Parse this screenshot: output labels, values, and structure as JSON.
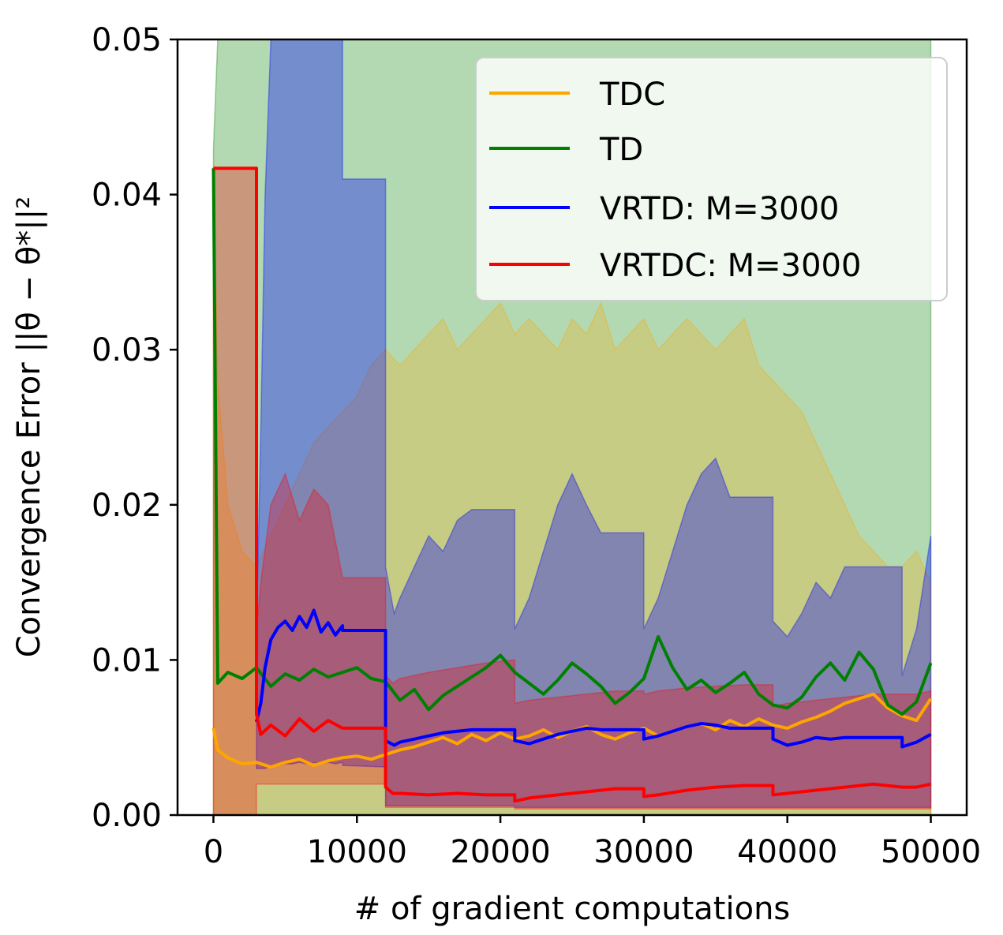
{
  "chart_data": {
    "type": "line",
    "title": "",
    "xlabel": "# of gradient computations",
    "ylabel": "Convergence Error ||θ − θ*||²",
    "xlim": [
      -2500,
      52500
    ],
    "ylim": [
      0,
      0.05
    ],
    "xticks": [
      0,
      10000,
      20000,
      30000,
      40000,
      50000
    ],
    "xtick_labels": [
      "0",
      "10000",
      "20000",
      "30000",
      "40000",
      "50000"
    ],
    "yticks": [
      0,
      0.01,
      0.02,
      0.03,
      0.04,
      0.05
    ],
    "ytick_labels": [
      "0.00",
      "0.01",
      "0.02",
      "0.03",
      "0.04",
      "0.05"
    ],
    "grid": false,
    "legend_position": "top-right",
    "series": [
      {
        "name": "TDC",
        "color": "#ffa500",
        "x": [
          0,
          300,
          1000,
          2000,
          3000,
          4000,
          5000,
          6000,
          7000,
          8000,
          9000,
          10000,
          11000,
          12000,
          13000,
          14000,
          15000,
          16000,
          17000,
          18000,
          19000,
          20000,
          21000,
          22000,
          23000,
          24000,
          25000,
          26000,
          27000,
          28000,
          29000,
          30000,
          31000,
          32000,
          33000,
          34000,
          35000,
          36000,
          37000,
          38000,
          39000,
          40000,
          41000,
          42000,
          43000,
          44000,
          45000,
          46000,
          47000,
          48000,
          49000,
          50000
        ],
        "values": [
          0.0056,
          0.0042,
          0.0037,
          0.0033,
          0.0034,
          0.0031,
          0.0034,
          0.0036,
          0.0032,
          0.0035,
          0.0037,
          0.0038,
          0.0036,
          0.0039,
          0.0042,
          0.0044,
          0.0047,
          0.005,
          0.0046,
          0.0052,
          0.0048,
          0.0053,
          0.0049,
          0.0051,
          0.0055,
          0.005,
          0.0054,
          0.0057,
          0.0052,
          0.0049,
          0.0053,
          0.0056,
          0.0051,
          0.0054,
          0.0057,
          0.0059,
          0.0055,
          0.0061,
          0.0057,
          0.0062,
          0.0058,
          0.0056,
          0.006,
          0.0063,
          0.0067,
          0.0072,
          0.0075,
          0.0078,
          0.0069,
          0.0064,
          0.0061,
          0.0075
        ],
        "band_low": 0.0,
        "band_high": [
          0.042,
          0.028,
          0.02,
          0.017,
          0.016,
          0.018,
          0.02,
          0.022,
          0.024,
          0.025,
          0.026,
          0.027,
          0.029,
          0.03,
          0.029,
          0.03,
          0.031,
          0.032,
          0.03,
          0.031,
          0.032,
          0.033,
          0.031,
          0.032,
          0.031,
          0.03,
          0.032,
          0.031,
          0.033,
          0.03,
          0.031,
          0.032,
          0.03,
          0.031,
          0.032,
          0.031,
          0.03,
          0.031,
          0.032,
          0.029,
          0.028,
          0.027,
          0.026,
          0.024,
          0.022,
          0.02,
          0.018,
          0.017,
          0.016,
          0.016,
          0.017,
          0.015
        ]
      },
      {
        "name": "TD",
        "color": "#008000",
        "x": [
          0,
          300,
          1000,
          2000,
          3000,
          4000,
          5000,
          6000,
          7000,
          8000,
          9000,
          10000,
          11000,
          12000,
          13000,
          14000,
          15000,
          16000,
          17000,
          18000,
          19000,
          20000,
          21000,
          22000,
          23000,
          24000,
          25000,
          26000,
          27000,
          28000,
          29000,
          30000,
          31000,
          32000,
          33000,
          34000,
          35000,
          36000,
          37000,
          38000,
          39000,
          40000,
          41000,
          42000,
          43000,
          44000,
          45000,
          46000,
          47000,
          48000,
          49000,
          50000
        ],
        "values": [
          0.0417,
          0.0085,
          0.0092,
          0.0088,
          0.0095,
          0.0083,
          0.0091,
          0.0087,
          0.0094,
          0.0089,
          0.0092,
          0.0095,
          0.0088,
          0.0086,
          0.0074,
          0.0081,
          0.0068,
          0.0077,
          0.0083,
          0.0089,
          0.0095,
          0.0103,
          0.0092,
          0.0085,
          0.0078,
          0.0087,
          0.0098,
          0.0091,
          0.0083,
          0.0072,
          0.0079,
          0.0088,
          0.0115,
          0.0095,
          0.0081,
          0.0087,
          0.0079,
          0.0085,
          0.0092,
          0.0078,
          0.0071,
          0.0069,
          0.0076,
          0.0089,
          0.0098,
          0.0087,
          0.0105,
          0.0094,
          0.0071,
          0.0065,
          0.0073,
          0.0098
        ],
        "band_low": 0.0,
        "band_high": [
          0.043,
          0.05,
          0.05,
          0.05,
          0.05,
          0.05,
          0.05,
          0.05,
          0.05,
          0.05,
          0.05,
          0.05,
          0.05,
          0.05,
          0.05,
          0.05,
          0.05,
          0.05,
          0.05,
          0.05,
          0.05,
          0.05,
          0.05,
          0.05,
          0.05,
          0.05,
          0.05,
          0.05,
          0.05,
          0.05,
          0.05,
          0.05,
          0.05,
          0.05,
          0.05,
          0.05,
          0.05,
          0.05,
          0.05,
          0.05,
          0.05,
          0.05,
          0.05,
          0.05,
          0.05,
          0.05,
          0.05,
          0.05,
          0.05,
          0.05,
          0.05,
          0.05
        ]
      },
      {
        "name": "VRTD: M=3000",
        "color": "#0000ff",
        "x": [
          3000,
          3300,
          3600,
          4000,
          4500,
          5000,
          5500,
          6000,
          6500,
          7000,
          7500,
          8000,
          8500,
          9000,
          9000,
          12000,
          12000,
          12600,
          13000,
          14000,
          15000,
          16000,
          17000,
          18000,
          21000,
          21000,
          22000,
          23000,
          24000,
          25000,
          26000,
          27000,
          30000,
          30000,
          31000,
          32000,
          33000,
          34000,
          35000,
          36000,
          39000,
          39000,
          40000,
          41000,
          42000,
          43000,
          44000,
          45000,
          48000,
          48000,
          49000,
          50000
        ],
        "values": [
          0.006,
          0.0072,
          0.0095,
          0.0113,
          0.0121,
          0.0125,
          0.0119,
          0.0128,
          0.0121,
          0.0132,
          0.0118,
          0.0124,
          0.0116,
          0.0122,
          0.0119,
          0.0119,
          0.0048,
          0.0045,
          0.0047,
          0.0049,
          0.0051,
          0.0053,
          0.0054,
          0.0055,
          0.0055,
          0.0048,
          0.0046,
          0.0049,
          0.0052,
          0.0054,
          0.0056,
          0.0055,
          0.0055,
          0.0049,
          0.0051,
          0.0054,
          0.0057,
          0.0059,
          0.0058,
          0.0056,
          0.0056,
          0.0049,
          0.0045,
          0.0047,
          0.005,
          0.0049,
          0.005,
          0.005,
          0.005,
          0.0044,
          0.0047,
          0.0052
        ],
        "band_low": [
          0.003,
          0.003,
          0.003,
          0.0032,
          0.0032,
          0.0033,
          0.0033,
          0.0034,
          0.0033,
          0.0034,
          0.0033,
          0.0034,
          0.0033,
          0.0034,
          0.0032,
          0.0031,
          0.0006,
          0.0006,
          0.0006,
          0.0006,
          0.0006,
          0.0006,
          0.0006,
          0.0006,
          0.0006,
          0.0005,
          0.0005,
          0.0005,
          0.0005,
          0.0005,
          0.0005,
          0.0005,
          0.0005,
          0.0005,
          0.0005,
          0.0005,
          0.0005,
          0.0005,
          0.0005,
          0.0005,
          0.0005,
          0.0005,
          0.0005,
          0.0005,
          0.0005,
          0.0005,
          0.0005,
          0.0005,
          0.0005,
          0.0005,
          0.0005,
          0.0005
        ],
        "band_high": [
          0.012,
          0.025,
          0.04,
          0.05,
          0.05,
          0.05,
          0.05,
          0.05,
          0.05,
          0.05,
          0.05,
          0.05,
          0.05,
          0.05,
          0.041,
          0.041,
          0.016,
          0.013,
          0.014,
          0.016,
          0.018,
          0.017,
          0.019,
          0.0197,
          0.0197,
          0.012,
          0.014,
          0.017,
          0.02,
          0.022,
          0.02,
          0.0182,
          0.0182,
          0.012,
          0.014,
          0.017,
          0.02,
          0.022,
          0.023,
          0.0205,
          0.0205,
          0.0125,
          0.0115,
          0.013,
          0.015,
          0.014,
          0.016,
          0.016,
          0.016,
          0.009,
          0.012,
          0.018
        ]
      },
      {
        "name": "VRTDC: M=3000",
        "color": "#ff0000",
        "x": [
          0,
          3000,
          3000,
          3300,
          4000,
          5000,
          6000,
          7000,
          8000,
          9000,
          9000,
          12000,
          12000,
          12500,
          13000,
          15000,
          17000,
          19000,
          21000,
          21000,
          22000,
          24000,
          26000,
          28000,
          30000,
          30000,
          31000,
          33000,
          35000,
          37000,
          39000,
          39000,
          40000,
          42000,
          44000,
          46000,
          48000,
          49000,
          50000
        ],
        "values": [
          0.0417,
          0.0417,
          0.0065,
          0.0052,
          0.0058,
          0.0051,
          0.0062,
          0.0054,
          0.0061,
          0.0056,
          0.0056,
          0.0056,
          0.0018,
          0.0014,
          0.0014,
          0.0013,
          0.0014,
          0.0013,
          0.0013,
          0.0009,
          0.0011,
          0.0013,
          0.0015,
          0.0017,
          0.0017,
          0.0012,
          0.0013,
          0.0016,
          0.0018,
          0.0019,
          0.0019,
          0.0013,
          0.0014,
          0.0016,
          0.0018,
          0.002,
          0.0018,
          0.0018,
          0.002
        ],
        "band_low": [
          0.0,
          0.0,
          0.002,
          0.002,
          0.002,
          0.002,
          0.002,
          0.002,
          0.002,
          0.002,
          0.002,
          0.002,
          0.0005,
          0.0005,
          0.0005,
          0.0005,
          0.0005,
          0.0005,
          0.0005,
          0.0004,
          0.0004,
          0.0004,
          0.0004,
          0.0004,
          0.0004,
          0.0004,
          0.0004,
          0.0004,
          0.0004,
          0.0004,
          0.0004,
          0.0004,
          0.0004,
          0.0004,
          0.0004,
          0.0004,
          0.0004,
          0.0004,
          0.0004
        ],
        "band_high": [
          0.0417,
          0.0417,
          0.012,
          0.015,
          0.02,
          0.022,
          0.019,
          0.021,
          0.02,
          0.0153,
          0.0153,
          0.0153,
          0.009,
          0.0085,
          0.0088,
          0.0092,
          0.0095,
          0.0098,
          0.01,
          0.0072,
          0.0074,
          0.0076,
          0.0078,
          0.008,
          0.008,
          0.0078,
          0.008,
          0.0082,
          0.0083,
          0.0084,
          0.0084,
          0.007,
          0.0072,
          0.0074,
          0.0076,
          0.0078,
          0.0078,
          0.0078,
          0.008
        ]
      }
    ]
  }
}
